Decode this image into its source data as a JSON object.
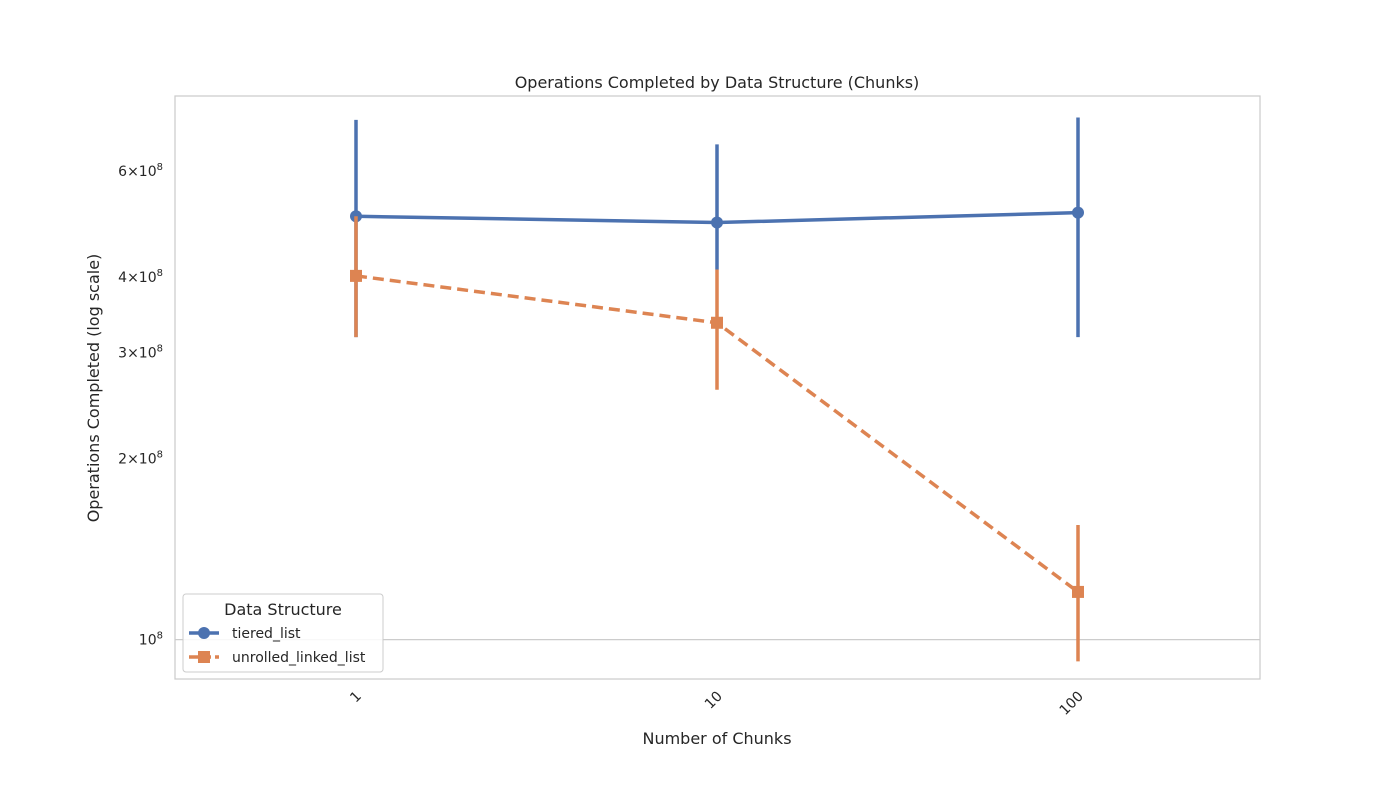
{
  "chart_data": {
    "type": "line",
    "title": "Operations Completed by Data Structure (Chunks)",
    "xlabel": "Number of Chunks",
    "ylabel": "Operations Completed (log scale)",
    "categories": [
      "1",
      "10",
      "100"
    ],
    "y_scale": "log",
    "ylim": [
      86000000,
      800000000
    ],
    "y_ticks": [
      {
        "value": 100000000,
        "base": "10",
        "exp": "8"
      },
      {
        "value": 200000000,
        "base": "2×10",
        "exp": "8"
      },
      {
        "value": 300000000,
        "base": "3×10",
        "exp": "8"
      },
      {
        "value": 400000000,
        "base": "4×10",
        "exp": "8"
      },
      {
        "value": 600000000,
        "base": "6×10",
        "exp": "8"
      }
    ],
    "grid": "horizontal",
    "legend": {
      "title": "Data Structure",
      "placement": "lower-left"
    },
    "series": [
      {
        "name": "tiered_list",
        "color": "#4c72b0",
        "marker": "circle",
        "linestyle": "solid",
        "values": [
          505000000,
          493000000,
          512000000
        ],
        "error_low": [
          318000000,
          412000000,
          318000000
        ],
        "error_high": [
          730000000,
          665000000,
          737000000
        ]
      },
      {
        "name": "unrolled_linked_list",
        "color": "#dd8452",
        "marker": "square",
        "linestyle": "dashed",
        "values": [
          402000000,
          336000000,
          120000000
        ],
        "error_low": [
          318000000,
          260000000,
          92000000
        ],
        "error_high": [
          505000000,
          412000000,
          155000000
        ]
      }
    ]
  }
}
